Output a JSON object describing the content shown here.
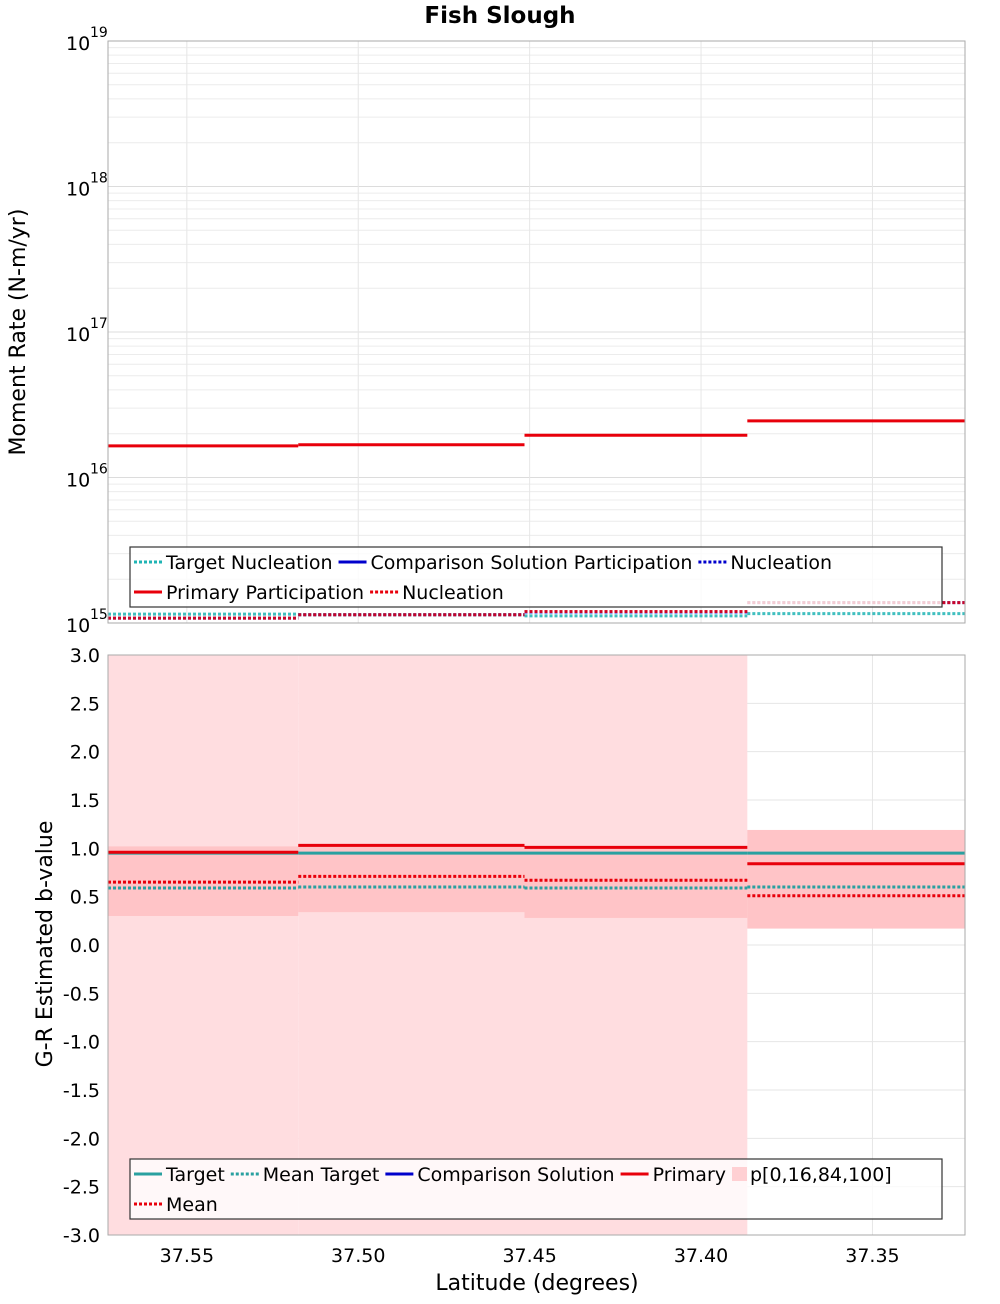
{
  "chart_data": [
    {
      "type": "line",
      "title": "Fish Slough",
      "ylabel": "Moment Rate (N-m/yr)",
      "yscale": "log",
      "ylim": [
        1000000000000000.0,
        1e+19
      ],
      "y_ticks": [
        {
          "base": "10",
          "exp": "15"
        },
        {
          "base": "10",
          "exp": "16"
        },
        {
          "base": "10",
          "exp": "17"
        },
        {
          "base": "10",
          "exp": "18"
        },
        {
          "base": "10",
          "exp": "19"
        }
      ],
      "xlim": [
        37.573,
        37.323
      ],
      "bins": [
        [
          37.573,
          37.5175
        ],
        [
          37.5175,
          37.4515
        ],
        [
          37.4515,
          37.3865
        ],
        [
          37.3865,
          37.323
        ]
      ],
      "series": [
        {
          "name": "Target Nucleation",
          "style": "dotted",
          "color": "#1fb4b4",
          "values": [
            1150000000000000.0,
            1140000000000000.0,
            1120000000000000.0,
            1160000000000000.0
          ]
        },
        {
          "name": "Nucleation",
          "style": "dotted",
          "color": "#0000cc",
          "values": [
            1080000000000000.0,
            1140000000000000.0,
            1190000000000000.0,
            1380000000000000.0
          ]
        },
        {
          "name": "Primary Participation",
          "style": "solid",
          "color": "#e8000b",
          "values": [
            1.65e+16,
            1.68e+16,
            1.95e+16,
            2.45e+16
          ]
        },
        {
          "name": "Nucleation",
          "style": "dotted",
          "color": "#e8000b",
          "values": [
            1080000000000000.0,
            1140000000000000.0,
            1200000000000000.0,
            1380000000000000.0
          ]
        }
      ],
      "legend_placement": "bottom",
      "legend": [
        [
          {
            "label": "Target Nucleation",
            "style": "dotted",
            "color": "#1fb4b4"
          },
          {
            "label": "Comparison Solution Participation",
            "style": "solid",
            "color": "#0000cc"
          },
          {
            "label": "Nucleation",
            "style": "dotted",
            "color": "#0000cc"
          }
        ],
        [
          {
            "label": "Primary Participation",
            "style": "solid",
            "color": "#e8000b"
          },
          {
            "label": "Nucleation",
            "style": "dotted",
            "color": "#e8000b"
          }
        ]
      ]
    },
    {
      "type": "line",
      "xlabel": "Latitude (degrees)",
      "ylabel": "G-R Estimated b-value",
      "ylim": [
        -3.0,
        3.0
      ],
      "y_ticks": [
        "3.0",
        "2.5",
        "2.0",
        "1.5",
        "1.0",
        "0.5",
        "0.0",
        "-0.5",
        "-1.0",
        "-1.5",
        "-2.0",
        "-2.5",
        "-3.0"
      ],
      "xlim": [
        37.573,
        37.323
      ],
      "x_ticks": [
        "37.55",
        "37.50",
        "37.45",
        "37.40",
        "37.35"
      ],
      "bins": [
        [
          37.573,
          37.5175
        ],
        [
          37.5175,
          37.4515
        ],
        [
          37.4515,
          37.3865
        ],
        [
          37.3865,
          37.323
        ]
      ],
      "bands": [
        {
          "name": "p0-100",
          "color": "#ffdde0",
          "lower": [
            -3.0,
            -3.0,
            -3.0,
            0.17
          ],
          "upper": [
            3.0,
            3.0,
            3.0,
            1.19
          ]
        },
        {
          "name": "p16-84",
          "color": "#ffc4c7",
          "lower": [
            0.3,
            0.34,
            0.28,
            0.17
          ],
          "upper": [
            1.02,
            1.04,
            1.02,
            1.19
          ]
        }
      ],
      "series": [
        {
          "name": "Target",
          "style": "solid",
          "color": "#2aa0a0",
          "values": [
            0.95,
            0.95,
            0.95,
            0.95
          ]
        },
        {
          "name": "Mean Target",
          "style": "dotted",
          "color": "#2aa0a0",
          "values": [
            0.59,
            0.6,
            0.59,
            0.6
          ]
        },
        {
          "name": "Primary",
          "style": "solid",
          "color": "#e8000b",
          "values": [
            0.96,
            1.03,
            1.01,
            0.84
          ]
        },
        {
          "name": "Mean",
          "style": "dotted",
          "color": "#e8000b",
          "values": [
            0.65,
            0.71,
            0.67,
            0.51
          ]
        }
      ],
      "legend_placement": "bottom",
      "legend": [
        [
          {
            "label": "Target",
            "style": "solid",
            "color": "#2aa0a0"
          },
          {
            "label": "Mean Target",
            "style": "dotted",
            "color": "#2aa0a0"
          },
          {
            "label": "Comparison Solution",
            "style": "solid",
            "color": "#0000cc"
          },
          {
            "label": "Primary",
            "style": "solid",
            "color": "#e8000b"
          },
          {
            "label": "p[0,16,84,100]",
            "style": "box",
            "color": "#ffd0d3"
          }
        ],
        [
          {
            "label": "Mean",
            "style": "dotted",
            "color": "#e8000b"
          }
        ]
      ]
    }
  ]
}
